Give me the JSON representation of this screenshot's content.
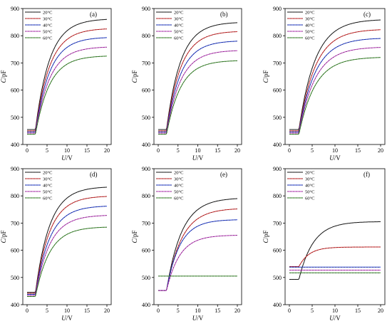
{
  "figure": {
    "xlabel": "U/V",
    "ylabel": "C/pF"
  },
  "chart_data": [
    {
      "panel": "(a)",
      "type": "line",
      "xlabel": "U/V",
      "ylabel": "C/pF",
      "xlim": [
        0,
        20
      ],
      "ylim": [
        400,
        900
      ],
      "xticks": [
        0,
        5,
        10,
        15,
        20
      ],
      "yticks": [
        400,
        500,
        600,
        700,
        800,
        900
      ],
      "legend": "top-left",
      "series": [
        {
          "name": "20°C",
          "color": "#1a1a1a",
          "base": 455,
          "end": 860,
          "k": 0.28
        },
        {
          "name": "30°C",
          "color": "#d62728",
          "base": 450,
          "end": 825,
          "k": 0.28
        },
        {
          "name": "40°C",
          "color": "#1f3bd6",
          "base": 446,
          "end": 793,
          "k": 0.28
        },
        {
          "name": "50°C",
          "color": "#c43fc4",
          "base": 442,
          "end": 758,
          "k": 0.28
        },
        {
          "name": "60°C",
          "color": "#3a8f2a",
          "base": 438,
          "end": 725,
          "k": 0.28
        }
      ]
    },
    {
      "panel": "(b)",
      "type": "line",
      "xlabel": "U/V",
      "ylabel": "C/pF",
      "xlim": [
        0,
        20
      ],
      "ylim": [
        400,
        900
      ],
      "xticks": [
        0,
        5,
        10,
        15,
        20
      ],
      "yticks": [
        400,
        500,
        600,
        700,
        800,
        900
      ],
      "legend": "top-left",
      "series": [
        {
          "name": "20°C",
          "color": "#1a1a1a",
          "base": 455,
          "end": 848,
          "k": 0.28
        },
        {
          "name": "30°C",
          "color": "#d62728",
          "base": 450,
          "end": 815,
          "k": 0.28
        },
        {
          "name": "40°C",
          "color": "#1f3bd6",
          "base": 446,
          "end": 780,
          "k": 0.28
        },
        {
          "name": "50°C",
          "color": "#c43fc4",
          "base": 442,
          "end": 745,
          "k": 0.28
        },
        {
          "name": "60°C",
          "color": "#3a8f2a",
          "base": 438,
          "end": 708,
          "k": 0.28
        }
      ]
    },
    {
      "panel": "(c)",
      "type": "line",
      "xlabel": "U/V",
      "ylabel": "C/pF",
      "xlim": [
        0,
        20
      ],
      "ylim": [
        400,
        900
      ],
      "xticks": [
        0,
        5,
        10,
        15,
        20
      ],
      "yticks": [
        400,
        500,
        600,
        700,
        800,
        900
      ],
      "legend": "top-left",
      "series": [
        {
          "name": "20°C",
          "color": "#1a1a1a",
          "base": 455,
          "end": 858,
          "k": 0.28
        },
        {
          "name": "30°C",
          "color": "#d62728",
          "base": 450,
          "end": 822,
          "k": 0.28
        },
        {
          "name": "40°C",
          "color": "#1f3bd6",
          "base": 446,
          "end": 790,
          "k": 0.28
        },
        {
          "name": "50°C",
          "color": "#c43fc4",
          "base": 442,
          "end": 757,
          "k": 0.28
        },
        {
          "name": "60°C",
          "color": "#3a8f2a",
          "base": 438,
          "end": 720,
          "k": 0.28
        }
      ]
    },
    {
      "panel": "(d)",
      "type": "line",
      "xlabel": "U/V",
      "ylabel": "C/pF",
      "xlim": [
        0,
        20
      ],
      "ylim": [
        400,
        900
      ],
      "xticks": [
        0,
        5,
        10,
        15,
        20
      ],
      "yticks": [
        400,
        500,
        600,
        700,
        800,
        900
      ],
      "legend": "top-left",
      "series": [
        {
          "name": "20°C",
          "color": "#1a1a1a",
          "base": 445,
          "end": 832,
          "k": 0.28
        },
        {
          "name": "30°C",
          "color": "#d62728",
          "base": 442,
          "end": 798,
          "k": 0.28
        },
        {
          "name": "40°C",
          "color": "#1f3bd6",
          "base": 438,
          "end": 762,
          "k": 0.28
        },
        {
          "name": "50°C",
          "color": "#c43fc4",
          "base": 434,
          "end": 728,
          "k": 0.28
        },
        {
          "name": "60°C",
          "color": "#3a8f2a",
          "base": 430,
          "end": 685,
          "k": 0.28
        }
      ]
    },
    {
      "panel": "(e)",
      "type": "line",
      "xlabel": "U/V",
      "ylabel": "C/pF",
      "xlim": [
        0,
        20
      ],
      "ylim": [
        400,
        900
      ],
      "xticks": [
        0,
        5,
        10,
        15,
        20
      ],
      "yticks": [
        400,
        500,
        600,
        700,
        800,
        900
      ],
      "legend": "top-left",
      "series": [
        {
          "name": "20°C",
          "color": "#1a1a1a",
          "base": 452,
          "end": 790,
          "k": 0.26
        },
        {
          "name": "30°C",
          "color": "#d62728",
          "base": 452,
          "end": 752,
          "k": 0.26
        },
        {
          "name": "40°C",
          "color": "#1f3bd6",
          "base": 452,
          "end": 712,
          "k": 0.3
        },
        {
          "name": "50°C",
          "color": "#c43fc4",
          "base": 452,
          "end": 655,
          "k": 0.3
        },
        {
          "name": "60°C",
          "color": "#3a8f2a",
          "base": 505,
          "end": 505,
          "k": 0.3
        }
      ]
    },
    {
      "panel": "(f)",
      "type": "line",
      "xlabel": "U/V",
      "ylabel": "C/pF",
      "xlim": [
        0,
        20
      ],
      "ylim": [
        400,
        900
      ],
      "xticks": [
        0,
        5,
        10,
        15,
        20
      ],
      "yticks": [
        400,
        500,
        600,
        700,
        800,
        900
      ],
      "legend": "top-left",
      "series": [
        {
          "name": "20°C",
          "color": "#1a1a1a",
          "base": 493,
          "end": 705,
          "k": 0.32
        },
        {
          "name": "30°C",
          "color": "#d62728",
          "base": 540,
          "end": 612,
          "k": 0.45
        },
        {
          "name": "40°C",
          "color": "#1f3bd6",
          "base": 538,
          "end": 538,
          "k": 0.3
        },
        {
          "name": "50°C",
          "color": "#c43fc4",
          "base": 527,
          "end": 527,
          "k": 0.3
        },
        {
          "name": "60°C",
          "color": "#3a8f2a",
          "base": 517,
          "end": 517,
          "k": 0.3
        }
      ]
    }
  ]
}
